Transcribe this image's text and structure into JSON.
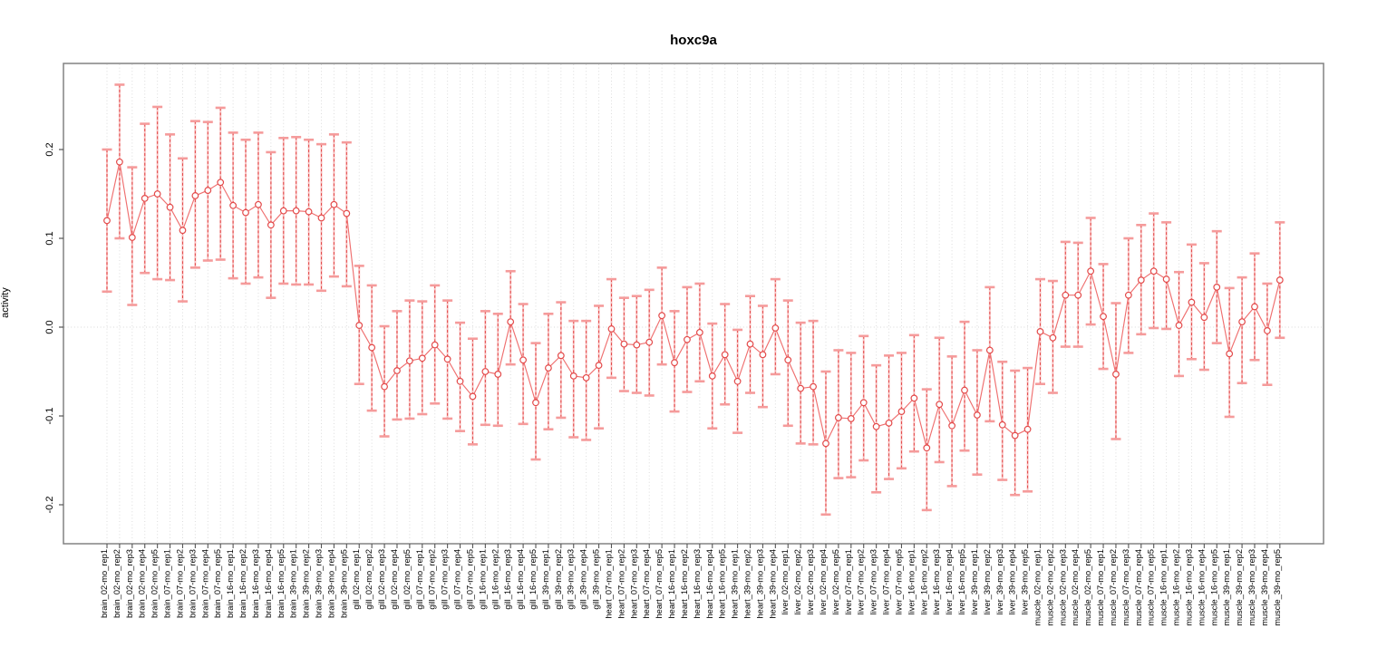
{
  "chart_data": {
    "type": "scatter",
    "subtype": "means-with-error-bars",
    "title": "hoxc9a",
    "xlabel": "",
    "ylabel": "activity",
    "ylim": [
      -0.244,
      0.297
    ],
    "ytick_values": [
      0.2,
      0.1,
      0.0,
      -0.1,
      -0.2
    ],
    "ytick_labels": [
      "0.2",
      "0.1",
      "0.0",
      "-0.1",
      "-0.2"
    ],
    "grid": "vertical-dotted-per-category-plus-zero-line",
    "legend": "none",
    "colors": {
      "error_bar_stem": "#e34a4a",
      "error_bar_stem_light": "#f79797",
      "error_bar_cap": "#f59b9b",
      "series_line": "#ef6f6f",
      "point_stroke": "#e34a4a",
      "frame": "#828282",
      "grid_dotted": "#dcdcdc"
    },
    "points": [
      {
        "label": "brain_02-mo_rep1",
        "mean": 0.12,
        "lo": 0.04,
        "hi": 0.2
      },
      {
        "label": "brain_02-mo_rep2",
        "mean": 0.186,
        "lo": 0.1,
        "hi": 0.273
      },
      {
        "label": "brain_02-mo_rep3",
        "mean": 0.101,
        "lo": 0.025,
        "hi": 0.18
      },
      {
        "label": "brain_02-mo_rep4",
        "mean": 0.145,
        "lo": 0.061,
        "hi": 0.229
      },
      {
        "label": "brain_02-mo_rep5",
        "mean": 0.15,
        "lo": 0.054,
        "hi": 0.248
      },
      {
        "label": "brain_07-mo_rep1",
        "mean": 0.135,
        "lo": 0.053,
        "hi": 0.217
      },
      {
        "label": "brain_07-mo_rep2",
        "mean": 0.109,
        "lo": 0.029,
        "hi": 0.19
      },
      {
        "label": "brain_07-mo_rep3",
        "mean": 0.148,
        "lo": 0.067,
        "hi": 0.232
      },
      {
        "label": "brain_07-mo_rep4",
        "mean": 0.154,
        "lo": 0.075,
        "hi": 0.231
      },
      {
        "label": "brain_07-mo_rep5",
        "mean": 0.163,
        "lo": 0.076,
        "hi": 0.247
      },
      {
        "label": "brain_16-mo_rep1",
        "mean": 0.137,
        "lo": 0.055,
        "hi": 0.219
      },
      {
        "label": "brain_16-mo_rep2",
        "mean": 0.129,
        "lo": 0.049,
        "hi": 0.211
      },
      {
        "label": "brain_16-mo_rep3",
        "mean": 0.138,
        "lo": 0.056,
        "hi": 0.219
      },
      {
        "label": "brain_16-mo_rep4",
        "mean": 0.115,
        "lo": 0.033,
        "hi": 0.197
      },
      {
        "label": "brain_16-mo_rep5",
        "mean": 0.131,
        "lo": 0.049,
        "hi": 0.213
      },
      {
        "label": "brain_39-mo_rep1",
        "mean": 0.131,
        "lo": 0.048,
        "hi": 0.214
      },
      {
        "label": "brain_39-mo_rep2",
        "mean": 0.13,
        "lo": 0.048,
        "hi": 0.211
      },
      {
        "label": "brain_39-mo_rep3",
        "mean": 0.123,
        "lo": 0.041,
        "hi": 0.206
      },
      {
        "label": "brain_39-mo_rep4",
        "mean": 0.138,
        "lo": 0.057,
        "hi": 0.217
      },
      {
        "label": "brain_39-mo_rep5",
        "mean": 0.128,
        "lo": 0.046,
        "hi": 0.208
      },
      {
        "label": "gill_02-mo_rep1",
        "mean": 0.002,
        "lo": -0.064,
        "hi": 0.069
      },
      {
        "label": "gill_02-mo_rep2",
        "mean": -0.023,
        "lo": -0.094,
        "hi": 0.047
      },
      {
        "label": "gill_02-mo_rep3",
        "mean": -0.067,
        "lo": -0.123,
        "hi": 0.001
      },
      {
        "label": "gill_02-mo_rep4",
        "mean": -0.049,
        "lo": -0.104,
        "hi": 0.018
      },
      {
        "label": "gill_02-mo_rep5",
        "mean": -0.038,
        "lo": -0.103,
        "hi": 0.03
      },
      {
        "label": "gill_07-mo_rep1",
        "mean": -0.035,
        "lo": -0.098,
        "hi": 0.029
      },
      {
        "label": "gill_07-mo_rep2",
        "mean": -0.02,
        "lo": -0.086,
        "hi": 0.047
      },
      {
        "label": "gill_07-mo_rep3",
        "mean": -0.036,
        "lo": -0.103,
        "hi": 0.03
      },
      {
        "label": "gill_07-mo_rep4",
        "mean": -0.061,
        "lo": -0.117,
        "hi": 0.005
      },
      {
        "label": "gill_07-mo_rep5",
        "mean": -0.078,
        "lo": -0.132,
        "hi": -0.013
      },
      {
        "label": "gill_16-mo_rep1",
        "mean": -0.05,
        "lo": -0.11,
        "hi": 0.018
      },
      {
        "label": "gill_16-mo_rep2",
        "mean": -0.053,
        "lo": -0.111,
        "hi": 0.015
      },
      {
        "label": "gill_16-mo_rep3",
        "mean": 0.006,
        "lo": -0.042,
        "hi": 0.063
      },
      {
        "label": "gill_16-mo_rep4",
        "mean": -0.037,
        "lo": -0.109,
        "hi": 0.026
      },
      {
        "label": "gill_16-mo_rep5",
        "mean": -0.085,
        "lo": -0.149,
        "hi": -0.018
      },
      {
        "label": "gill_39-mo_rep1",
        "mean": -0.046,
        "lo": -0.115,
        "hi": 0.015
      },
      {
        "label": "gill_39-mo_rep2",
        "mean": -0.032,
        "lo": -0.102,
        "hi": 0.028
      },
      {
        "label": "gill_39-mo_rep3",
        "mean": -0.055,
        "lo": -0.124,
        "hi": 0.007
      },
      {
        "label": "gill_39-mo_rep4",
        "mean": -0.057,
        "lo": -0.127,
        "hi": 0.007
      },
      {
        "label": "gill_39-mo_rep5",
        "mean": -0.043,
        "lo": -0.114,
        "hi": 0.024
      },
      {
        "label": "heart_07-mo_rep1",
        "mean": -0.002,
        "lo": -0.057,
        "hi": 0.054
      },
      {
        "label": "heart_07-mo_rep2",
        "mean": -0.019,
        "lo": -0.072,
        "hi": 0.033
      },
      {
        "label": "heart_07-mo_rep3",
        "mean": -0.02,
        "lo": -0.074,
        "hi": 0.035
      },
      {
        "label": "heart_07-mo_rep4",
        "mean": -0.017,
        "lo": -0.077,
        "hi": 0.042
      },
      {
        "label": "heart_07-mo_rep5",
        "mean": 0.013,
        "lo": -0.042,
        "hi": 0.067
      },
      {
        "label": "heart_16-mo_rep1",
        "mean": -0.04,
        "lo": -0.095,
        "hi": 0.018
      },
      {
        "label": "heart_16-mo_rep2",
        "mean": -0.014,
        "lo": -0.073,
        "hi": 0.045
      },
      {
        "label": "heart_16-mo_rep3",
        "mean": -0.006,
        "lo": -0.061,
        "hi": 0.049
      },
      {
        "label": "heart_16-mo_rep4",
        "mean": -0.055,
        "lo": -0.114,
        "hi": 0.004
      },
      {
        "label": "heart_16-mo_rep5",
        "mean": -0.031,
        "lo": -0.087,
        "hi": 0.026
      },
      {
        "label": "heart_39-mo_rep1",
        "mean": -0.061,
        "lo": -0.119,
        "hi": -0.003
      },
      {
        "label": "heart_39-mo_rep2",
        "mean": -0.019,
        "lo": -0.074,
        "hi": 0.035
      },
      {
        "label": "heart_39-mo_rep3",
        "mean": -0.031,
        "lo": -0.09,
        "hi": 0.024
      },
      {
        "label": "heart_39-mo_rep4",
        "mean": -0.001,
        "lo": -0.053,
        "hi": 0.054
      },
      {
        "label": "liver_02-mo_rep1",
        "mean": -0.037,
        "lo": -0.111,
        "hi": 0.03
      },
      {
        "label": "liver_02-mo_rep2",
        "mean": -0.069,
        "lo": -0.131,
        "hi": 0.005
      },
      {
        "label": "liver_02-mo_rep3",
        "mean": -0.067,
        "lo": -0.132,
        "hi": 0.007
      },
      {
        "label": "liver_02-mo_rep4",
        "mean": -0.131,
        "lo": -0.211,
        "hi": -0.05
      },
      {
        "label": "liver_02-mo_rep5",
        "mean": -0.102,
        "lo": -0.17,
        "hi": -0.026
      },
      {
        "label": "liver_07-mo_rep1",
        "mean": -0.103,
        "lo": -0.169,
        "hi": -0.029
      },
      {
        "label": "liver_07-mo_rep2",
        "mean": -0.085,
        "lo": -0.15,
        "hi": -0.01
      },
      {
        "label": "liver_07-mo_rep3",
        "mean": -0.112,
        "lo": -0.186,
        "hi": -0.043
      },
      {
        "label": "liver_07-mo_rep4",
        "mean": -0.108,
        "lo": -0.171,
        "hi": -0.032
      },
      {
        "label": "liver_07-mo_rep5",
        "mean": -0.095,
        "lo": -0.159,
        "hi": -0.029
      },
      {
        "label": "liver_16-mo_rep1",
        "mean": -0.08,
        "lo": -0.14,
        "hi": -0.009
      },
      {
        "label": "liver_16-mo_rep2",
        "mean": -0.136,
        "lo": -0.206,
        "hi": -0.07
      },
      {
        "label": "liver_16-mo_rep3",
        "mean": -0.087,
        "lo": -0.152,
        "hi": -0.012
      },
      {
        "label": "liver_16-mo_rep4",
        "mean": -0.111,
        "lo": -0.179,
        "hi": -0.033
      },
      {
        "label": "liver_16-mo_rep5",
        "mean": -0.071,
        "lo": -0.139,
        "hi": 0.006
      },
      {
        "label": "liver_39-mo_rep1",
        "mean": -0.099,
        "lo": -0.166,
        "hi": -0.026
      },
      {
        "label": "liver_39-mo_rep2",
        "mean": -0.026,
        "lo": -0.106,
        "hi": 0.045
      },
      {
        "label": "liver_39-mo_rep3",
        "mean": -0.11,
        "lo": -0.172,
        "hi": -0.039
      },
      {
        "label": "liver_39-mo_rep4",
        "mean": -0.122,
        "lo": -0.189,
        "hi": -0.049
      },
      {
        "label": "liver_39-mo_rep5",
        "mean": -0.115,
        "lo": -0.185,
        "hi": -0.046
      },
      {
        "label": "muscle_02-mo_rep1",
        "mean": -0.005,
        "lo": -0.064,
        "hi": 0.054
      },
      {
        "label": "muscle_02-mo_rep2",
        "mean": -0.012,
        "lo": -0.074,
        "hi": 0.052
      },
      {
        "label": "muscle_02-mo_rep3",
        "mean": 0.036,
        "lo": -0.022,
        "hi": 0.096
      },
      {
        "label": "muscle_02-mo_rep4",
        "mean": 0.036,
        "lo": -0.022,
        "hi": 0.095
      },
      {
        "label": "muscle_02-mo_rep5",
        "mean": 0.063,
        "lo": 0.003,
        "hi": 0.123
      },
      {
        "label": "muscle_07-mo_rep1",
        "mean": 0.012,
        "lo": -0.047,
        "hi": 0.071
      },
      {
        "label": "muscle_07-mo_rep2",
        "mean": -0.053,
        "lo": -0.126,
        "hi": 0.027
      },
      {
        "label": "muscle_07-mo_rep3",
        "mean": 0.036,
        "lo": -0.029,
        "hi": 0.1
      },
      {
        "label": "muscle_07-mo_rep4",
        "mean": 0.053,
        "lo": -0.008,
        "hi": 0.115
      },
      {
        "label": "muscle_07-mo_rep5",
        "mean": 0.063,
        "lo": -0.001,
        "hi": 0.128
      },
      {
        "label": "muscle_16-mo_rep1",
        "mean": 0.054,
        "lo": -0.002,
        "hi": 0.118
      },
      {
        "label": "muscle_16-mo_rep2",
        "mean": 0.002,
        "lo": -0.055,
        "hi": 0.062
      },
      {
        "label": "muscle_16-mo_rep3",
        "mean": 0.028,
        "lo": -0.036,
        "hi": 0.093
      },
      {
        "label": "muscle_16-mo_rep4",
        "mean": 0.011,
        "lo": -0.048,
        "hi": 0.072
      },
      {
        "label": "muscle_16-mo_rep5",
        "mean": 0.045,
        "lo": -0.018,
        "hi": 0.108
      },
      {
        "label": "muscle_39-mo_rep1",
        "mean": -0.03,
        "lo": -0.101,
        "hi": 0.044
      },
      {
        "label": "muscle_39-mo_rep2",
        "mean": 0.006,
        "lo": -0.063,
        "hi": 0.056
      },
      {
        "label": "muscle_39-mo_rep3",
        "mean": 0.023,
        "lo": -0.037,
        "hi": 0.083
      },
      {
        "label": "muscle_39-mo_rep4",
        "mean": -0.004,
        "lo": -0.065,
        "hi": 0.049
      },
      {
        "label": "muscle_39-mo_rep5",
        "mean": 0.053,
        "lo": -0.012,
        "hi": 0.118
      }
    ]
  }
}
